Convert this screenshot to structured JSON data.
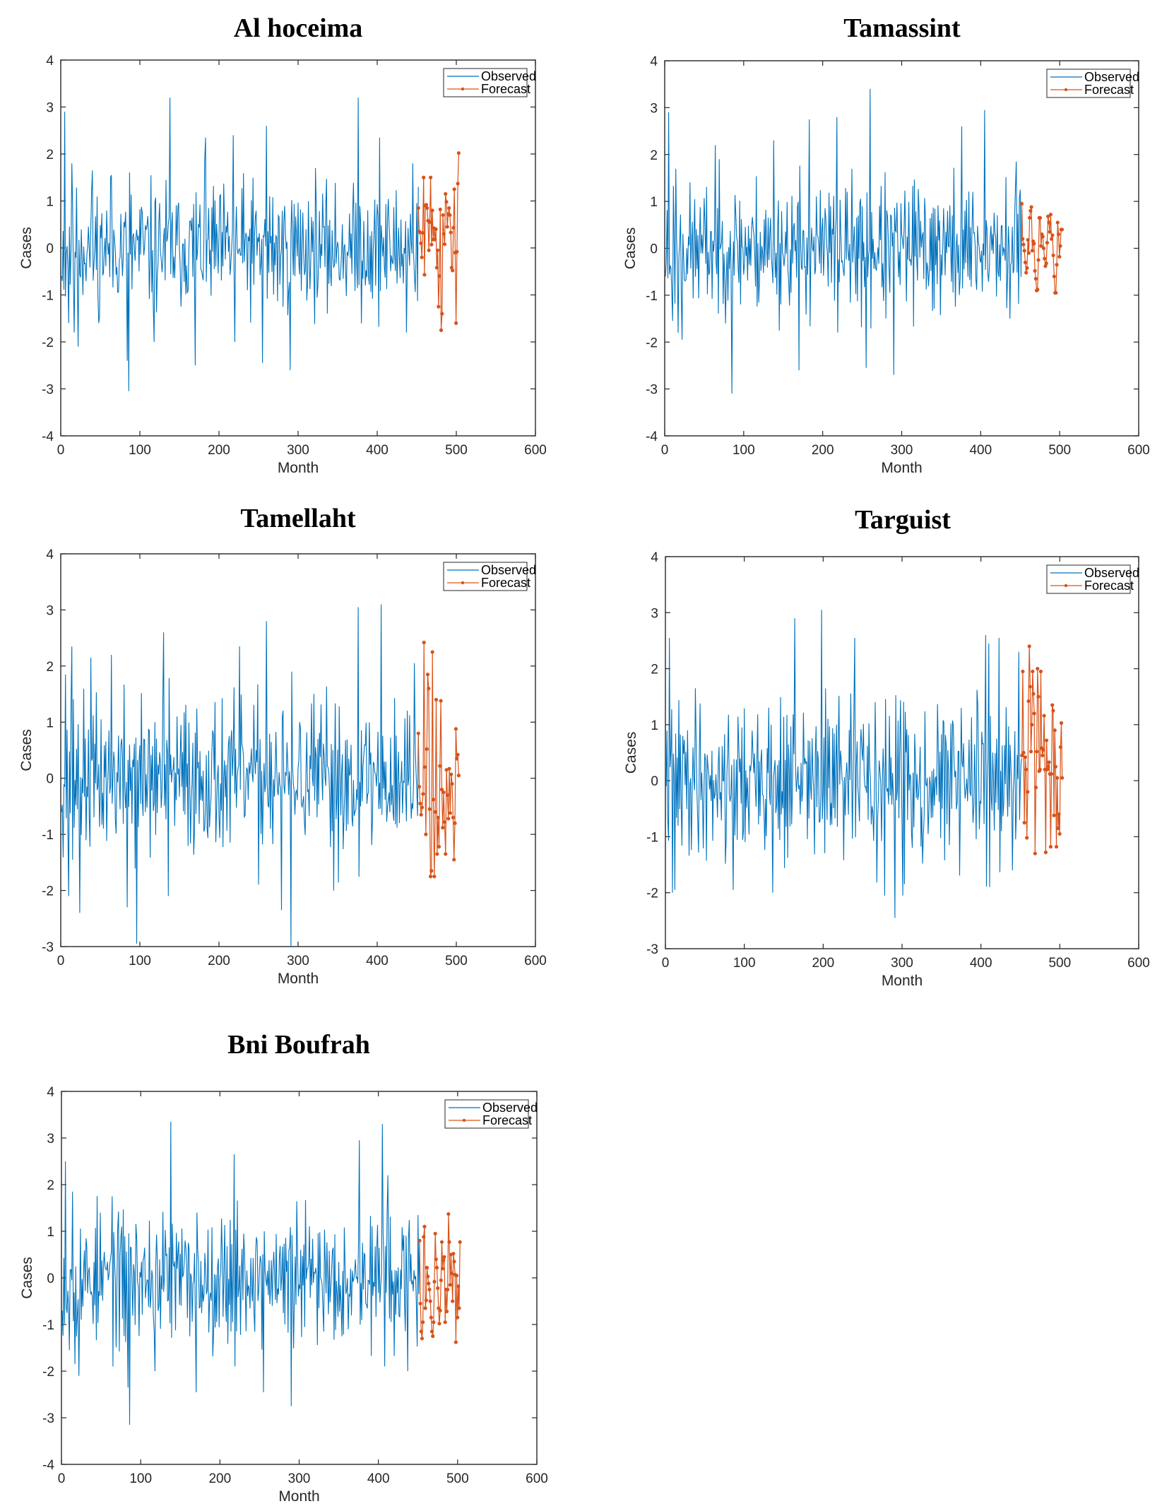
{
  "figure": {
    "colors": {
      "observed": "#0072BD",
      "forecast": "#D95319",
      "axis": "#262626"
    }
  },
  "chart_data": [
    {
      "type": "line",
      "title": "Al hoceima",
      "xlabel": "Month",
      "ylabel": "Cases",
      "xlim": [
        0,
        600
      ],
      "ylim": [
        -4,
        4
      ],
      "xticks": [
        "0",
        "100",
        "200",
        "300",
        "400",
        "500",
        "600"
      ],
      "yticks": [
        "-4",
        "-3",
        "-2",
        "-1",
        "0",
        "1",
        "2",
        "3",
        "4"
      ],
      "legend": {
        "position": "top-right",
        "entries": [
          "Observed",
          "Forecast"
        ]
      },
      "series": [
        {
          "name": "Observed",
          "seed": 11,
          "x_start": 1,
          "x_end": 452,
          "anchors": [
            [
              1,
              -0.6
            ],
            [
              5,
              2.9
            ],
            [
              10,
              -1.6
            ],
            [
              14,
              1.8
            ],
            [
              17,
              -1.8
            ],
            [
              22,
              -2.1
            ],
            [
              40,
              1.65
            ],
            [
              48,
              -1.6
            ],
            [
              64,
              1.55
            ],
            [
              84,
              -2.4
            ],
            [
              86,
              -3.05
            ],
            [
              118,
              -2.0
            ],
            [
              138,
              3.2
            ],
            [
              170,
              -2.5
            ],
            [
              183,
              2.35
            ],
            [
              218,
              2.4
            ],
            [
              220,
              -2.0
            ],
            [
              255,
              -2.45
            ],
            [
              260,
              2.6
            ],
            [
              290,
              -2.6
            ],
            [
              376,
              3.2
            ],
            [
              403,
              2.35
            ],
            [
              437,
              -1.8
            ],
            [
              445,
              1.8
            ],
            [
              452,
              1.3
            ]
          ]
        },
        {
          "name": "Forecast",
          "x_start": 452,
          "x_end": 503,
          "values": [
            0.85,
            0.35,
            0.33,
            0.1,
            -0.2,
            0.32,
            1.5,
            -0.57,
            0.9,
            0.92,
            0.85,
            0.58,
            -0.05,
            0.55,
            1.5,
            0.07,
            0.8,
            0.18,
            0.42,
            0.18,
            0.4,
            -0.42,
            -0.05,
            -1.25,
            -0.6,
            0.82,
            -1.75,
            -1.4,
            0.7,
            0.3,
            0.08,
            1.15,
            0.98,
            0.45,
            0.72,
            0.85,
            0.7,
            0.33,
            -0.42,
            -0.48,
            0.43,
            1.25,
            -0.1,
            -1.6,
            -0.08,
            1.37,
            2.02
          ]
        }
      ]
    },
    {
      "type": "line",
      "title": "Tamassint",
      "xlabel": "Month",
      "ylabel": "Cases",
      "xlim": [
        0,
        600
      ],
      "ylim": [
        -4,
        4
      ],
      "xticks": [
        "0",
        "100",
        "200",
        "300",
        "400",
        "500",
        "600"
      ],
      "yticks": [
        "-4",
        "-3",
        "-2",
        "-1",
        "0",
        "1",
        "2",
        "3",
        "4"
      ],
      "legend": {
        "position": "top-right",
        "entries": [
          "Observed",
          "Forecast"
        ]
      },
      "series": [
        {
          "name": "Observed",
          "seed": 23,
          "x_start": 1,
          "x_end": 452,
          "anchors": [
            [
              1,
              -0.6
            ],
            [
              5,
              2.9
            ],
            [
              10,
              -1.55
            ],
            [
              14,
              1.7
            ],
            [
              17,
              -1.8
            ],
            [
              22,
              -1.95
            ],
            [
              64,
              2.2
            ],
            [
              85,
              -3.1
            ],
            [
              138,
              2.3
            ],
            [
              170,
              -2.6
            ],
            [
              183,
              2.75
            ],
            [
              218,
              2.8
            ],
            [
              255,
              -2.55
            ],
            [
              260,
              3.4
            ],
            [
              290,
              -2.7
            ],
            [
              376,
              2.6
            ],
            [
              405,
              2.95
            ],
            [
              437,
              -1.5
            ],
            [
              445,
              1.85
            ],
            [
              450,
              1.25
            ],
            [
              452,
              1.0
            ]
          ]
        },
        {
          "name": "Forecast",
          "x_start": 452,
          "x_end": 503,
          "values": [
            0.95,
            0.2,
            0.08,
            -0.05,
            -0.3,
            -0.52,
            -0.42,
            0.18,
            -0.1,
            0.65,
            0.8,
            0.88,
            -0.05,
            0.15,
            0.1,
            -0.48,
            -0.65,
            -0.9,
            -0.88,
            -0.25,
            0.65,
            0.65,
            0.05,
            0.3,
            0.25,
            0.0,
            -0.22,
            -0.38,
            -0.32,
            0.12,
            0.68,
            0.55,
            0.35,
            0.72,
            0.2,
            0.28,
            -0.15,
            -0.6,
            -0.95,
            -0.95,
            -0.35,
            0.55,
            0.3,
            -0.18,
            0.05,
            0.4,
            0.4
          ]
        }
      ]
    },
    {
      "type": "line",
      "title": "Tamellaht",
      "xlabel": "Month",
      "ylabel": "Cases",
      "xlim": [
        0,
        600
      ],
      "ylim": [
        -3,
        4
      ],
      "xticks": [
        "0",
        "100",
        "200",
        "300",
        "400",
        "500",
        "600"
      ],
      "yticks": [
        "-3",
        "-2",
        "-1",
        "0",
        "1",
        "2",
        "3",
        "4"
      ],
      "legend": {
        "position": "top-right",
        "entries": [
          "Observed",
          "Forecast"
        ]
      },
      "series": [
        {
          "name": "Observed",
          "seed": 37,
          "x_start": 1,
          "x_end": 452,
          "anchors": [
            [
              1,
              -0.6
            ],
            [
              6,
              1.85
            ],
            [
              10,
              -2.1
            ],
            [
              14,
              2.35
            ],
            [
              24,
              -2.4
            ],
            [
              38,
              2.15
            ],
            [
              64,
              2.2
            ],
            [
              84,
              -2.3
            ],
            [
              96,
              -2.95
            ],
            [
              130,
              2.6
            ],
            [
              136,
              -2.1
            ],
            [
              226,
              2.35
            ],
            [
              260,
              2.8
            ],
            [
              279,
              -2.35
            ],
            [
              291,
              -3.0
            ],
            [
              345,
              -2.0
            ],
            [
              376,
              3.05
            ],
            [
              405,
              3.1
            ],
            [
              447,
              2.05
            ],
            [
              452,
              0.8
            ]
          ]
        },
        {
          "name": "Forecast",
          "x_start": 452,
          "x_end": 503,
          "values": [
            0.8,
            -0.15,
            -0.45,
            -0.65,
            -0.52,
            -0.28,
            2.42,
            0.2,
            -1.0,
            0.52,
            1.85,
            1.6,
            -0.55,
            -1.75,
            -1.65,
            2.25,
            -0.38,
            -1.75,
            -0.6,
            1.4,
            -1.35,
            -0.7,
            -1.22,
            0.22,
            1.38,
            -0.2,
            -0.88,
            -0.25,
            -0.78,
            -1.35,
            0.15,
            -0.3,
            -0.72,
            0.17,
            -0.62,
            0.07,
            -0.1,
            -0.7,
            -1.45,
            -0.8,
            0.88,
            0.35,
            0.42,
            0.05
          ]
        }
      ]
    },
    {
      "type": "line",
      "title": "Targuist",
      "xlabel": "Month",
      "ylabel": "Cases",
      "xlim": [
        0,
        600
      ],
      "ylim": [
        -3,
        4
      ],
      "xticks": [
        "0",
        "100",
        "200",
        "300",
        "400",
        "500",
        "600"
      ],
      "yticks": [
        "-3",
        "-2",
        "-1",
        "0",
        "1",
        "2",
        "3",
        "4"
      ],
      "legend": {
        "position": "top-right",
        "entries": [
          "Observed",
          "Forecast"
        ]
      },
      "series": [
        {
          "name": "Observed",
          "seed": 41,
          "x_start": 1,
          "x_end": 452,
          "anchors": [
            [
              1,
              -0.1
            ],
            [
              5,
              2.55
            ],
            [
              9,
              -2.0
            ],
            [
              12,
              -1.95
            ],
            [
              38,
              1.65
            ],
            [
              86,
              -1.95
            ],
            [
              136,
              -2.0
            ],
            [
              164,
              2.9
            ],
            [
              198,
              3.05
            ],
            [
              240,
              2.55
            ],
            [
              278,
              -2.05
            ],
            [
              291,
              -2.45
            ],
            [
              301,
              -2.05
            ],
            [
              406,
              2.6
            ],
            [
              410,
              2.45
            ],
            [
              423,
              2.55
            ],
            [
              440,
              -1.6
            ],
            [
              448,
              2.3
            ],
            [
              452,
              0.4
            ]
          ]
        },
        {
          "name": "Forecast",
          "x_start": 452,
          "x_end": 503,
          "values": [
            0.45,
            1.95,
            0.5,
            -0.75,
            0.42,
            0.2,
            -1.02,
            -0.2,
            1.42,
            2.4,
            1.68,
            0.52,
            1.0,
            1.95,
            1.55,
            1.2,
            -1.3,
            -0.12,
            0.52,
            2.0,
            1.5,
            0.17,
            0.2,
            1.95,
            0.58,
            0.45,
            0.55,
            1.16,
            0.2,
            -1.28,
            0.72,
            0.2,
            0.25,
            0.33,
            0.12,
            -1.18,
            0.12,
            1.35,
            1.25,
            -0.62,
            0.9,
            0.25,
            -1.18,
            0.05,
            -0.85,
            -0.6,
            -0.95,
            0.6,
            1.03,
            0.05
          ]
        }
      ]
    },
    {
      "type": "line",
      "title": "Bni Boufrah",
      "xlabel": "Month",
      "ylabel": "Cases",
      "xlim": [
        0,
        600
      ],
      "ylim": [
        -4,
        4
      ],
      "xticks": [
        "0",
        "100",
        "200",
        "300",
        "400",
        "500",
        "600"
      ],
      "yticks": [
        "-4",
        "-3",
        "-2",
        "-1",
        "0",
        "1",
        "2",
        "3",
        "4"
      ],
      "legend": {
        "position": "top-right",
        "entries": [
          "Observed",
          "Forecast"
        ]
      },
      "series": [
        {
          "name": "Observed",
          "seed": 53,
          "x_start": 1,
          "x_end": 452,
          "anchors": [
            [
              1,
              -0.7
            ],
            [
              5,
              2.5
            ],
            [
              10,
              -1.55
            ],
            [
              14,
              1.85
            ],
            [
              17,
              -1.85
            ],
            [
              22,
              -2.1
            ],
            [
              64,
              1.75
            ],
            [
              84,
              -2.35
            ],
            [
              86,
              -3.15
            ],
            [
              118,
              -2.0
            ],
            [
              138,
              3.35
            ],
            [
              170,
              -2.45
            ],
            [
              218,
              2.65
            ],
            [
              255,
              -2.45
            ],
            [
              290,
              -2.75
            ],
            [
              376,
              2.95
            ],
            [
              405,
              3.3
            ],
            [
              412,
              2.2
            ],
            [
              437,
              -2.0
            ],
            [
              450,
              1.35
            ],
            [
              452,
              0.8
            ]
          ]
        },
        {
          "name": "Forecast",
          "x_start": 452,
          "x_end": 503,
          "values": [
            0.8,
            -0.55,
            -1.15,
            -1.3,
            -0.95,
            0.88,
            1.1,
            -0.65,
            -0.48,
            0.22,
            0.03,
            -0.12,
            -0.25,
            -0.5,
            -0.85,
            -1.15,
            -1.25,
            -0.95,
            -0.08,
            0.95,
            0.4,
            0.22,
            -0.22,
            -0.65,
            -0.98,
            -0.7,
            -0.05,
            0.77,
            0.2,
            0.38,
            0.45,
            -0.95,
            -0.25,
            -0.72,
            -0.25,
            1.37,
            0.77,
            -0.15,
            0.5,
            0.1,
            -0.5,
            0.52,
            0.35,
            0.07,
            -1.38,
            0.05,
            -0.85,
            -0.18,
            -0.65,
            0.77
          ]
        }
      ]
    }
  ]
}
